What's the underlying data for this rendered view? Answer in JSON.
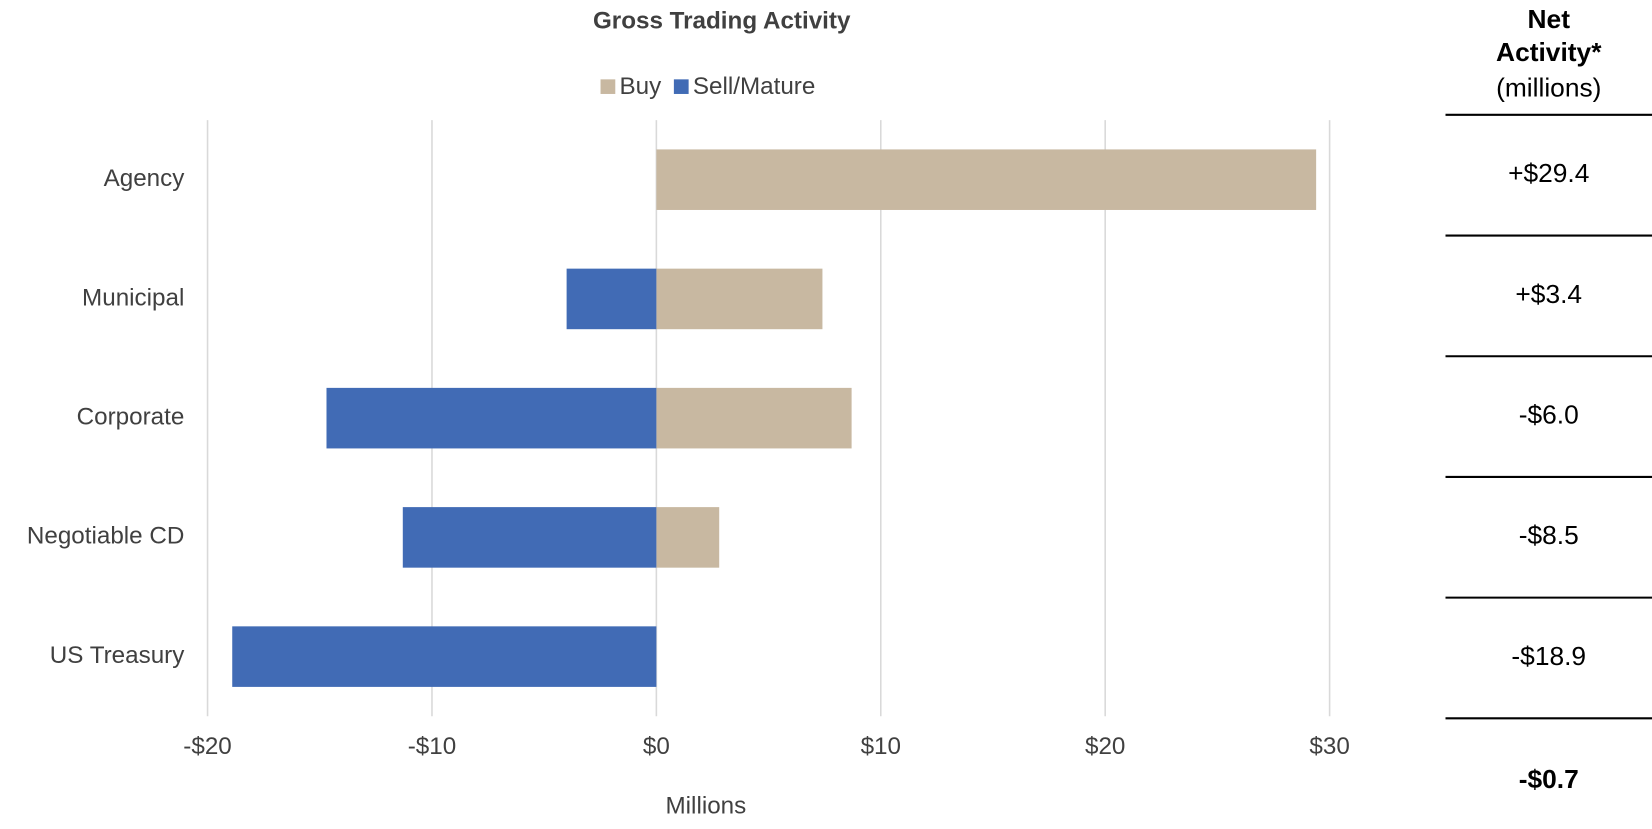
{
  "chart_data": {
    "type": "bar",
    "orientation": "horizontal",
    "title": "Gross Trading Activity",
    "x_label": "Millions",
    "categories": [
      "Agency",
      "Municipal",
      "Corporate",
      "Negotiable CD",
      "US Treasury"
    ],
    "series": [
      {
        "name": "Buy",
        "color": "#c8b8a1",
        "values": [
          29.4,
          7.4,
          8.7,
          2.8,
          0
        ]
      },
      {
        "name": "Sell/Mature",
        "color": "#416bb5",
        "values": [
          0,
          -4.0,
          -14.7,
          -11.3,
          -18.9
        ]
      }
    ],
    "xlim": [
      -20,
      30
    ],
    "xticks": [
      {
        "value": -20,
        "label": "-$20"
      },
      {
        "value": -10,
        "label": "-$10"
      },
      {
        "value": 0,
        "label": "$0"
      },
      {
        "value": 10,
        "label": "$10"
      },
      {
        "value": 20,
        "label": "$20"
      },
      {
        "value": 30,
        "label": "$30"
      }
    ],
    "grid": true,
    "legend": "top"
  },
  "net_activity": {
    "title": [
      "Net",
      "Activity*"
    ],
    "subtitle": "(millions)",
    "values": [
      "+$29.4",
      "+$3.4",
      "-$6.0",
      "-$8.5",
      "-$18.9"
    ],
    "total": "-$0.7"
  }
}
